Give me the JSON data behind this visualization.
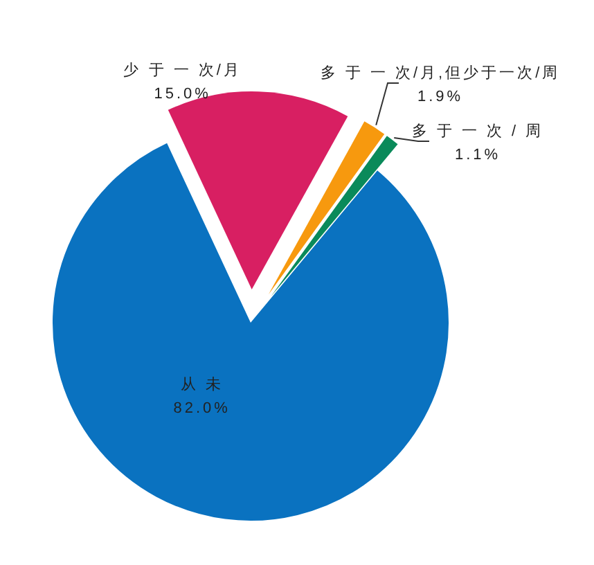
{
  "chart_data": {
    "type": "pie",
    "categories": [
      "多 于 一 次/月,但少于一次/周",
      "多 于 一 次 / 周",
      "从 未",
      "少 于 一 次/月"
    ],
    "values": [
      1.9,
      1.1,
      82.0,
      15.0
    ],
    "value_labels": [
      "1.9%",
      "1.1%",
      "82.0%",
      "15.0%"
    ],
    "colors": [
      "#f7990e",
      "#0a8a5a",
      "#0a72c0",
      "#d81f62"
    ]
  }
}
